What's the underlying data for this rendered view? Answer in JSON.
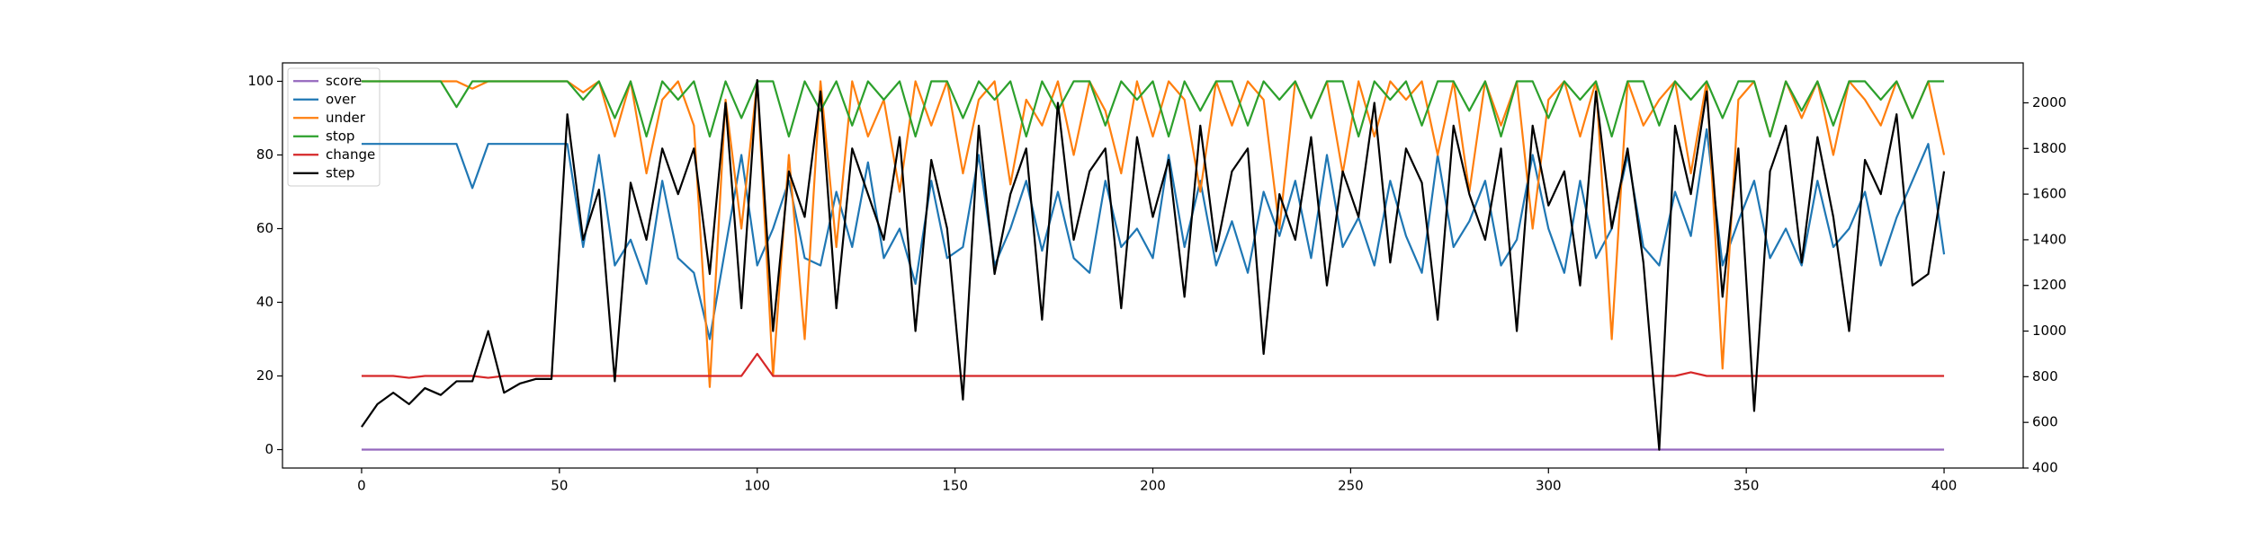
{
  "chart_data": {
    "type": "line",
    "x": [
      0,
      4,
      8,
      12,
      16,
      20,
      24,
      28,
      32,
      36,
      40,
      44,
      48,
      52,
      56,
      60,
      64,
      68,
      72,
      76,
      80,
      84,
      88,
      92,
      96,
      100,
      104,
      108,
      112,
      116,
      120,
      124,
      128,
      132,
      136,
      140,
      144,
      148,
      152,
      156,
      160,
      164,
      168,
      172,
      176,
      180,
      184,
      188,
      192,
      196,
      200,
      204,
      208,
      212,
      216,
      220,
      224,
      228,
      232,
      236,
      240,
      244,
      248,
      252,
      256,
      260,
      264,
      268,
      272,
      276,
      280,
      284,
      288,
      292,
      296,
      300,
      304,
      308,
      312,
      316,
      320,
      324,
      328,
      332,
      336,
      340,
      344,
      348,
      352,
      356,
      360,
      364,
      368,
      372,
      376,
      380,
      384,
      388,
      392,
      396,
      400
    ],
    "xlim": [
      -20,
      420
    ],
    "xticks": [
      0,
      50,
      100,
      150,
      200,
      250,
      300,
      350,
      400
    ],
    "ylim": [
      -5,
      105
    ],
    "yticks": [
      0,
      20,
      40,
      60,
      80,
      100
    ],
    "y2lim": [
      400,
      2175
    ],
    "y2ticks": [
      400,
      600,
      800,
      1000,
      1200,
      1400,
      1600,
      1800,
      2000
    ],
    "legend": "upper left",
    "series": [
      {
        "name": "score",
        "color": "#9467bd",
        "values": [
          0,
          0,
          0,
          0,
          0,
          0,
          0,
          0,
          0,
          0,
          0,
          0,
          0,
          0,
          0,
          0,
          0,
          0,
          0,
          0,
          0,
          0,
          0,
          0,
          0,
          0,
          0,
          0,
          0,
          0,
          0,
          0,
          0,
          0,
          0,
          0,
          0,
          0,
          0,
          0,
          0,
          0,
          0,
          0,
          0,
          0,
          0,
          0,
          0,
          0,
          0,
          0,
          0,
          0,
          0,
          0,
          0,
          0,
          0,
          0,
          0,
          0,
          0,
          0,
          0,
          0,
          0,
          0,
          0,
          0,
          0,
          0,
          0,
          0,
          0,
          0,
          0,
          0,
          0,
          0,
          0,
          0,
          0,
          0,
          0,
          0,
          0,
          0,
          0,
          0,
          0,
          0,
          0,
          0,
          0,
          0,
          0,
          0,
          0,
          0,
          0
        ]
      },
      {
        "name": "over",
        "color": "#1f77b4",
        "values": [
          83,
          83,
          83,
          83,
          83,
          83,
          83,
          71,
          83,
          83,
          83,
          83,
          83,
          83,
          55,
          80,
          50,
          57,
          45,
          73,
          52,
          48,
          30,
          55,
          80,
          50,
          60,
          73,
          52,
          50,
          70,
          55,
          78,
          52,
          60,
          45,
          73,
          52,
          55,
          80,
          50,
          60,
          73,
          54,
          70,
          52,
          48,
          73,
          55,
          60,
          52,
          80,
          55,
          73,
          50,
          62,
          48,
          70,
          58,
          73,
          52,
          80,
          55,
          63,
          50,
          73,
          58,
          48,
          80,
          55,
          62,
          73,
          50,
          57,
          80,
          60,
          48,
          73,
          52,
          60,
          80,
          55,
          50,
          70,
          58,
          87,
          50,
          62,
          73,
          52,
          60,
          50,
          73,
          55,
          60,
          70,
          50,
          63,
          73,
          83,
          53
        ]
      },
      {
        "name": "under",
        "color": "#ff7f0e",
        "values": [
          100,
          100,
          100,
          100,
          100,
          100,
          100,
          98,
          100,
          100,
          100,
          100,
          100,
          100,
          97,
          100,
          85,
          100,
          75,
          95,
          100,
          88,
          17,
          95,
          60,
          100,
          20,
          80,
          30,
          100,
          55,
          100,
          85,
          95,
          70,
          100,
          88,
          100,
          75,
          95,
          100,
          72,
          95,
          88,
          100,
          80,
          100,
          92,
          75,
          100,
          85,
          100,
          95,
          70,
          100,
          88,
          100,
          95,
          60,
          100,
          90,
          100,
          75,
          100,
          85,
          100,
          95,
          100,
          80,
          100,
          70,
          100,
          88,
          100,
          60,
          95,
          100,
          85,
          100,
          30,
          100,
          88,
          95,
          100,
          75,
          100,
          22,
          95,
          100,
          85,
          100,
          90,
          100,
          80,
          100,
          95,
          88,
          100,
          90,
          100,
          80
        ]
      },
      {
        "name": "stop",
        "color": "#2ca02c",
        "values": [
          100,
          100,
          100,
          100,
          100,
          100,
          93,
          100,
          100,
          100,
          100,
          100,
          100,
          100,
          95,
          100,
          90,
          100,
          85,
          100,
          95,
          100,
          85,
          100,
          90,
          100,
          100,
          85,
          100,
          92,
          100,
          88,
          100,
          95,
          100,
          85,
          100,
          100,
          90,
          100,
          95,
          100,
          85,
          100,
          92,
          100,
          100,
          88,
          100,
          95,
          100,
          85,
          100,
          92,
          100,
          100,
          88,
          100,
          95,
          100,
          90,
          100,
          100,
          85,
          100,
          95,
          100,
          88,
          100,
          100,
          92,
          100,
          85,
          100,
          100,
          90,
          100,
          95,
          100,
          85,
          100,
          100,
          88,
          100,
          95,
          100,
          90,
          100,
          100,
          85,
          100,
          92,
          100,
          88,
          100,
          100,
          95,
          100,
          90,
          100,
          100
        ]
      },
      {
        "name": "change",
        "color": "#d62728",
        "values": [
          20,
          20,
          20,
          19.5,
          20,
          20,
          20,
          20,
          19.5,
          20,
          20,
          20,
          20,
          20,
          20,
          20,
          20,
          20,
          20,
          20,
          20,
          20,
          20,
          20,
          20,
          26,
          20,
          20,
          20,
          20,
          20,
          20,
          20,
          20,
          20,
          20,
          20,
          20,
          20,
          20,
          20,
          20,
          20,
          20,
          20,
          20,
          20,
          20,
          20,
          20,
          20,
          20,
          20,
          20,
          20,
          20,
          20,
          20,
          20,
          20,
          20,
          20,
          20,
          20,
          20,
          20,
          20,
          20,
          20,
          20,
          20,
          20,
          20,
          20,
          20,
          20,
          20,
          20,
          20,
          20,
          20,
          20,
          20,
          20,
          21,
          20,
          20,
          20,
          20,
          20,
          20,
          20,
          20,
          20,
          20,
          20,
          20,
          20,
          20,
          20,
          20
        ]
      },
      {
        "name": "step",
        "color": "#000000",
        "axis": "y2",
        "values": [
          580,
          680,
          730,
          680,
          750,
          720,
          780,
          780,
          1000,
          730,
          770,
          790,
          790,
          1950,
          1400,
          1620,
          780,
          1650,
          1400,
          1800,
          1600,
          1800,
          1250,
          2000,
          1100,
          2100,
          1000,
          1700,
          1500,
          2050,
          1100,
          1800,
          1600,
          1400,
          1850,
          1000,
          1750,
          1450,
          700,
          1900,
          1250,
          1600,
          1800,
          1050,
          2000,
          1400,
          1700,
          1800,
          1100,
          1850,
          1500,
          1750,
          1150,
          1900,
          1350,
          1700,
          1800,
          900,
          1600,
          1400,
          1850,
          1200,
          1700,
          1500,
          2000,
          1300,
          1800,
          1650,
          1050,
          1900,
          1600,
          1400,
          1800,
          1000,
          1900,
          1550,
          1700,
          1200,
          2050,
          1450,
          1800,
          1300,
          480,
          1900,
          1600,
          2050,
          1150,
          1800,
          650,
          1700,
          1900,
          1300,
          1850,
          1500,
          1000,
          1750,
          1600,
          1950,
          1200,
          1250,
          1700
        ]
      }
    ]
  }
}
